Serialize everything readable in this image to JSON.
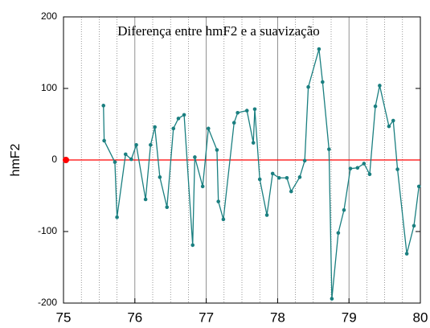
{
  "chart_data": {
    "type": "line",
    "title": "Diferença entre hmF2 e a suavização",
    "y_label": "hmF2",
    "x": [
      75.56,
      75.57,
      75.72,
      75.75,
      75.87,
      75.95,
      76.02,
      76.15,
      76.22,
      76.28,
      76.35,
      76.45,
      76.54,
      76.61,
      76.69,
      76.81,
      76.84,
      76.95,
      77.03,
      77.15,
      77.17,
      77.24,
      77.39,
      77.44,
      77.57,
      77.66,
      77.68,
      77.75,
      77.85,
      77.93,
      78.02,
      78.13,
      78.19,
      78.31,
      78.38,
      78.43,
      78.58,
      78.63,
      78.72,
      78.76,
      78.85,
      78.93,
      79.02,
      79.12,
      79.21,
      79.29,
      79.37,
      79.43,
      79.56,
      79.62,
      79.68,
      79.81,
      79.91,
      79.98
    ],
    "series": [
      {
        "color": "#1a7f80",
        "values": [
          76,
          27,
          -3,
          -80,
          8,
          1,
          21,
          -55,
          21,
          46,
          -24,
          -66,
          44,
          58,
          63,
          -119,
          4,
          -37,
          44,
          14,
          -58,
          -83,
          52,
          66,
          69,
          24,
          71,
          -27,
          -77,
          -19,
          -25,
          -25,
          -44,
          -24,
          -1,
          102,
          155,
          109,
          15,
          -194,
          -102,
          -70,
          -12,
          -11,
          -5,
          -20,
          75,
          104,
          47,
          55,
          -13,
          -131,
          -92,
          -37
        ]
      }
    ],
    "xlim": [
      75,
      80
    ],
    "xticks": [
      75,
      76,
      77,
      78,
      79,
      80
    ],
    "ylim": [
      -200,
      200
    ],
    "yticks": [
      -200,
      -100,
      0,
      100,
      200
    ],
    "xgrid_minor": [
      75.25,
      75.5,
      75.75,
      76.25,
      76.5,
      76.75,
      77.25,
      77.5,
      77.75,
      78.25,
      78.5,
      78.75,
      79.25,
      79.5,
      79.75
    ],
    "reference_line": {
      "value": 0,
      "color": "#ff0000"
    }
  }
}
